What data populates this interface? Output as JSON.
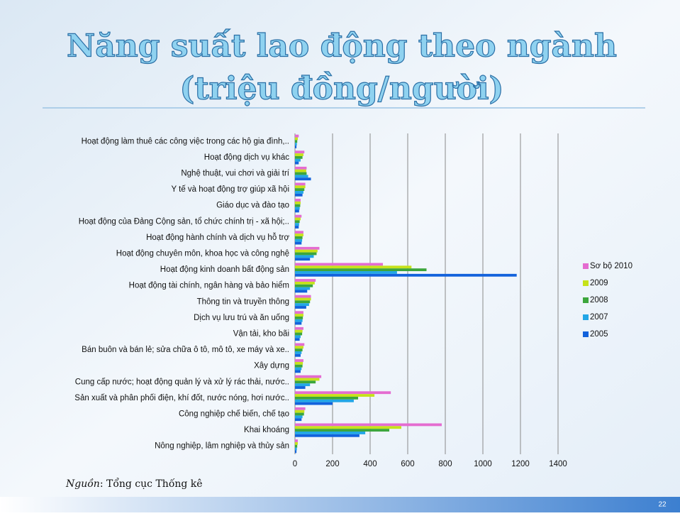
{
  "title": [
    "Năng suất lao động theo ngành",
    "(triệu đồng/người)"
  ],
  "chart_data": {
    "type": "barh",
    "categories": [
      "Hoạt động làm thuê các công việc trong các hộ gia đình,..",
      "Hoạt động dịch vụ khác",
      "Nghệ thuật, vui chơi và giải trí",
      "Y tế và hoạt động trợ giúp xã hội",
      "Giáo dục và đào tạo",
      "Hoạt động của Đảng Cộng sản, tổ chức chính trị - xã hội;..",
      "Hoạt động hành chính và dịch vụ hỗ trợ",
      "Hoạt động chuyên môn, khoa học và công nghệ",
      "Hoạt động kinh doanh bất động sản",
      "Hoạt động tài chính, ngân hàng và bảo hiểm",
      "Thông tin và truyền thông",
      "Dịch vụ lưu trú và ăn uống",
      "Vận tải, kho bãi",
      "Bán buôn và bán lẻ; sửa chữa ô tô, mô tô, xe máy và xe..",
      "Xây dựng",
      "Cung cấp nước; hoạt động quản lý và xử lý rác thải, nước..",
      "Sản xuất và phân phối điện, khí đốt, nước nóng, hơi nước..",
      "Công nghiệp chế biến, chế tạo",
      "Khai khoáng",
      "Nông nghiệp, lâm nghiệp và thủy sản"
    ],
    "series": [
      {
        "name": "Sơ bộ 2010",
        "color": "#e46cd0",
        "values": [
          20,
          50,
          62,
          55,
          30,
          35,
          45,
          130,
          468,
          110,
          85,
          45,
          45,
          50,
          45,
          140,
          510,
          55,
          781,
          15
        ]
      },
      {
        "name": "2009",
        "color": "#c6e21a",
        "values": [
          15,
          45,
          60,
          55,
          30,
          30,
          45,
          120,
          620,
          105,
          85,
          45,
          40,
          45,
          42,
          130,
          423,
          50,
          566,
          15
        ]
      },
      {
        "name": "2008",
        "color": "#3ca63c",
        "values": [
          12,
          40,
          62,
          50,
          28,
          25,
          40,
          115,
          700,
          95,
          80,
          42,
          38,
          40,
          40,
          110,
          336,
          48,
          502,
          12
        ]
      },
      {
        "name": "2007",
        "color": "#22a6e6",
        "values": [
          10,
          30,
          70,
          45,
          25,
          22,
          38,
          100,
          543,
          80,
          75,
          40,
          30,
          35,
          35,
          80,
          313,
          40,
          374,
          10
        ]
      },
      {
        "name": "2005",
        "color": "#1262dc",
        "values": [
          8,
          20,
          85,
          40,
          22,
          20,
          35,
          80,
          1180,
          65,
          60,
          35,
          25,
          30,
          30,
          55,
          200,
          35,
          343,
          8
        ]
      }
    ],
    "xlim": [
      0,
      1400
    ],
    "xticks": [
      0,
      200,
      400,
      600,
      800,
      1000,
      1200,
      1400
    ],
    "grid": true,
    "legend": "right"
  },
  "source": [
    "Nguồn",
    ": Tổng cục Thống kê"
  ],
  "page_number": "22"
}
